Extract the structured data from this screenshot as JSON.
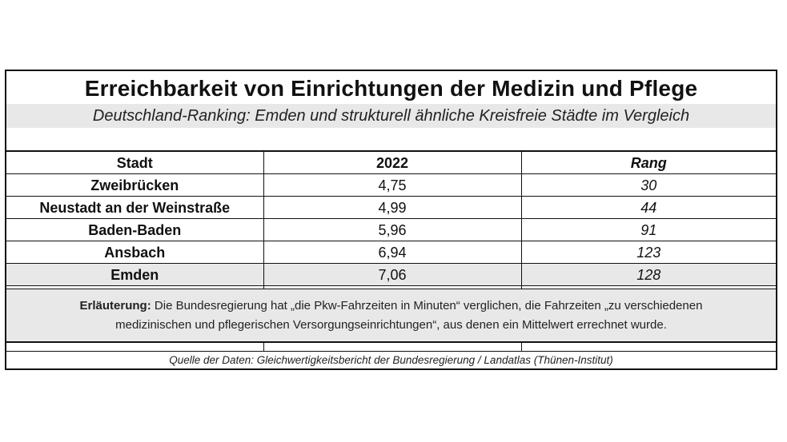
{
  "title": "Erreichbarkeit von Einrichtungen der Medizin und Pflege",
  "subtitle": "Deutschland-Ranking: Emden und strukturell ähnliche Kreisfreie Städte im Vergleich",
  "table": {
    "headers": [
      "Stadt",
      "2022",
      "Rang"
    ],
    "rows": [
      {
        "city": "Zweibrücken",
        "value": "4,75",
        "rank": "30"
      },
      {
        "city": "Neustadt an der Weinstraße",
        "value": "4,99",
        "rank": "44"
      },
      {
        "city": "Baden-Baden",
        "value": "5,96",
        "rank": "91"
      },
      {
        "city": "Ansbach",
        "value": "6,94",
        "rank": "123"
      },
      {
        "city": "Emden",
        "value": "7,06",
        "rank": "128"
      }
    ]
  },
  "note": {
    "label": "Erläuterung:",
    "line1": " Die Bundesregierung hat „die Pkw-Fahrzeiten in Minuten“ verglichen, die Fahrzeiten „zu verschiedenen",
    "line2": "medizinischen und pflegerischen Versorgungseinrichtungen“, aus denen ein Mittelwert errechnet wurde."
  },
  "source": "Quelle der Daten: Gleichwertigkeitsbericht der Bundesregierung / Landatlas (Thünen-Institut)"
}
